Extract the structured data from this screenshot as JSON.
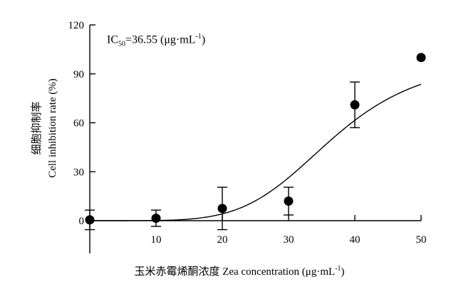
{
  "chart_data": {
    "type": "scatter",
    "x": [
      0,
      10,
      20,
      30,
      40,
      50
    ],
    "y": [
      0.5,
      1.5,
      7.5,
      12,
      71,
      100
    ],
    "error": [
      6,
      5,
      13,
      8.5,
      14,
      0
    ],
    "fit_curve": "sigmoid",
    "xlim": [
      0,
      50
    ],
    "ylim": [
      0,
      120
    ],
    "xticks": [
      "10",
      "20",
      "30",
      "40",
      "50"
    ],
    "yticks": [
      "0",
      "30",
      "60",
      "90",
      "120"
    ],
    "ylabel_cn": "细胞抑制率",
    "ylabel_en": "Cell inhibition rate (%)",
    "xlabel_text": "玉米赤霉烯酮浓度 Zea  concentration (μg·mL",
    "xlabel_sup": "-1",
    "xlabel_tail": ")",
    "annotation": {
      "prefix": "IC",
      "sub": "50",
      "value": "=36.55 (μg·mL",
      "sup": "-1",
      "suffix": ")"
    }
  }
}
